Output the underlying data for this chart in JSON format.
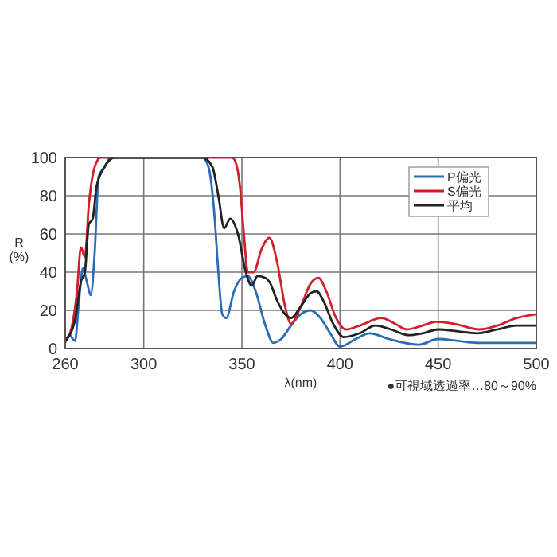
{
  "chart_data": {
    "type": "line",
    "xlabel": "λ(nm)",
    "ylabel": "R\n(%)",
    "xlim": [
      260,
      500
    ],
    "ylim": [
      0,
      100
    ],
    "xticks": [
      260,
      300,
      350,
      400,
      450,
      500
    ],
    "yticks": [
      0,
      20,
      40,
      60,
      80,
      100
    ],
    "grid": true,
    "legend": "top right",
    "annotations": [
      "●可視域透過率…80～90%"
    ],
    "series": [
      {
        "name": "P偏光",
        "color": "#2a6cb5",
        "x": [
          260,
          262,
          265,
          267,
          269,
          271,
          273,
          275,
          277,
          280,
          283,
          290,
          330,
          333,
          336,
          338,
          340,
          342,
          346,
          350,
          353,
          357,
          362,
          366,
          370,
          375,
          380,
          385,
          390,
          395,
          400,
          408,
          415,
          425,
          440,
          450,
          460,
          470,
          480,
          490,
          500
        ],
        "values": [
          3,
          7,
          4,
          25,
          42,
          35,
          28,
          50,
          90,
          95,
          100,
          100,
          100,
          95,
          70,
          40,
          18,
          16,
          30,
          37,
          38,
          30,
          12,
          3,
          5,
          12,
          18,
          20,
          16,
          8,
          1,
          5,
          8,
          5,
          2,
          5,
          4,
          3,
          3,
          3,
          3
        ]
      },
      {
        "name": "S偏光",
        "color": "#d0202a",
        "x": [
          260,
          263,
          266,
          268,
          270,
          272,
          275,
          278,
          290,
          345,
          347,
          349,
          351,
          353,
          356,
          360,
          364,
          368,
          372,
          375,
          380,
          385,
          389,
          393,
          398,
          403,
          410,
          421,
          428,
          434,
          442,
          449,
          458,
          471,
          480,
          490,
          500
        ],
        "values": [
          4,
          10,
          30,
          53,
          48,
          75,
          95,
          100,
          100,
          100,
          97,
          85,
          60,
          40,
          40,
          52,
          58,
          45,
          22,
          13,
          22,
          34,
          37,
          30,
          16,
          10,
          12,
          16,
          13,
          10,
          12,
          14,
          13,
          10,
          12,
          16,
          18
        ]
      },
      {
        "name": "平均",
        "color": "#222222",
        "x": [
          260,
          265,
          268,
          270,
          272,
          274,
          276,
          280,
          285,
          290,
          330,
          335,
          338,
          341,
          344,
          348,
          352,
          355,
          358,
          362,
          364,
          368,
          372,
          375,
          380,
          385,
          388,
          392,
          396,
          402,
          410,
          418,
          426,
          435,
          442,
          450,
          460,
          470,
          480,
          490,
          500
        ],
        "values": [
          4,
          15,
          35,
          40,
          65,
          68,
          85,
          95,
          100,
          100,
          100,
          95,
          80,
          63,
          68,
          60,
          40,
          33,
          38,
          37,
          35,
          25,
          18,
          16,
          22,
          29,
          30,
          24,
          14,
          6,
          8,
          12,
          10,
          7,
          8,
          10,
          9,
          8,
          10,
          12,
          12
        ]
      }
    ]
  }
}
